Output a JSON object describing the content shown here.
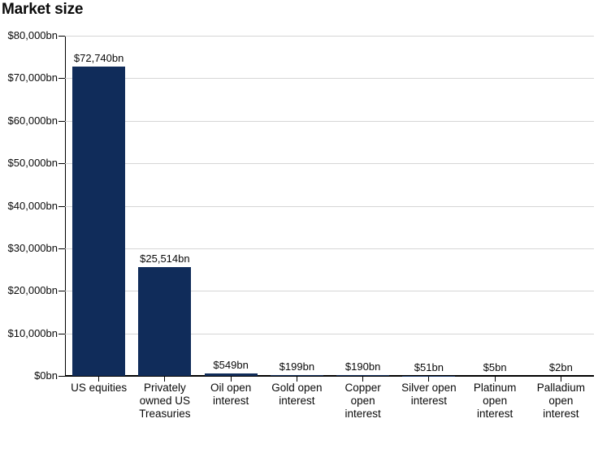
{
  "chart_data": {
    "type": "bar",
    "title": "Market size",
    "categories": [
      "US equities",
      "Privately owned US Treasuries",
      "Oil open interest",
      "Gold open interest",
      "Copper open interest",
      "Silver open interest",
      "Platinum open interest",
      "Palladium open interest"
    ],
    "category_lines": [
      "US equities",
      "Privately\nowned US\nTreasuries",
      "Oil open\ninterest",
      "Gold open\ninterest",
      "Copper\nopen\ninterest",
      "Silver open\ninterest",
      "Platinum\nopen\ninterest",
      "Palladium\nopen\ninterest"
    ],
    "values": [
      72740,
      25514,
      549,
      199,
      190,
      51,
      5,
      2
    ],
    "value_labels": [
      "$72,740bn",
      "$25,514bn",
      "$549bn",
      "$199bn",
      "$190bn",
      "$51bn",
      "$5bn",
      "$2bn"
    ],
    "ylim": [
      0,
      80000
    ],
    "y_ticks": [
      {
        "value": 0,
        "label": "$0bn"
      },
      {
        "value": 10000,
        "label": "$10,000bn"
      },
      {
        "value": 20000,
        "label": "$20,000bn"
      },
      {
        "value": 30000,
        "label": "$30,000bn"
      },
      {
        "value": 40000,
        "label": "$40,000bn"
      },
      {
        "value": 50000,
        "label": "$50,000bn"
      },
      {
        "value": 60000,
        "label": "$60,000bn"
      },
      {
        "value": 70000,
        "label": "$70,000bn"
      },
      {
        "value": 80000,
        "label": "$80,000bn"
      }
    ],
    "grid": true,
    "legend_position": "none",
    "colors": {
      "bar": "#102c5a",
      "gridline": "#d6d6d6",
      "axis": "#000000",
      "text": "#0a0a0a",
      "background": "#ffffff"
    }
  }
}
